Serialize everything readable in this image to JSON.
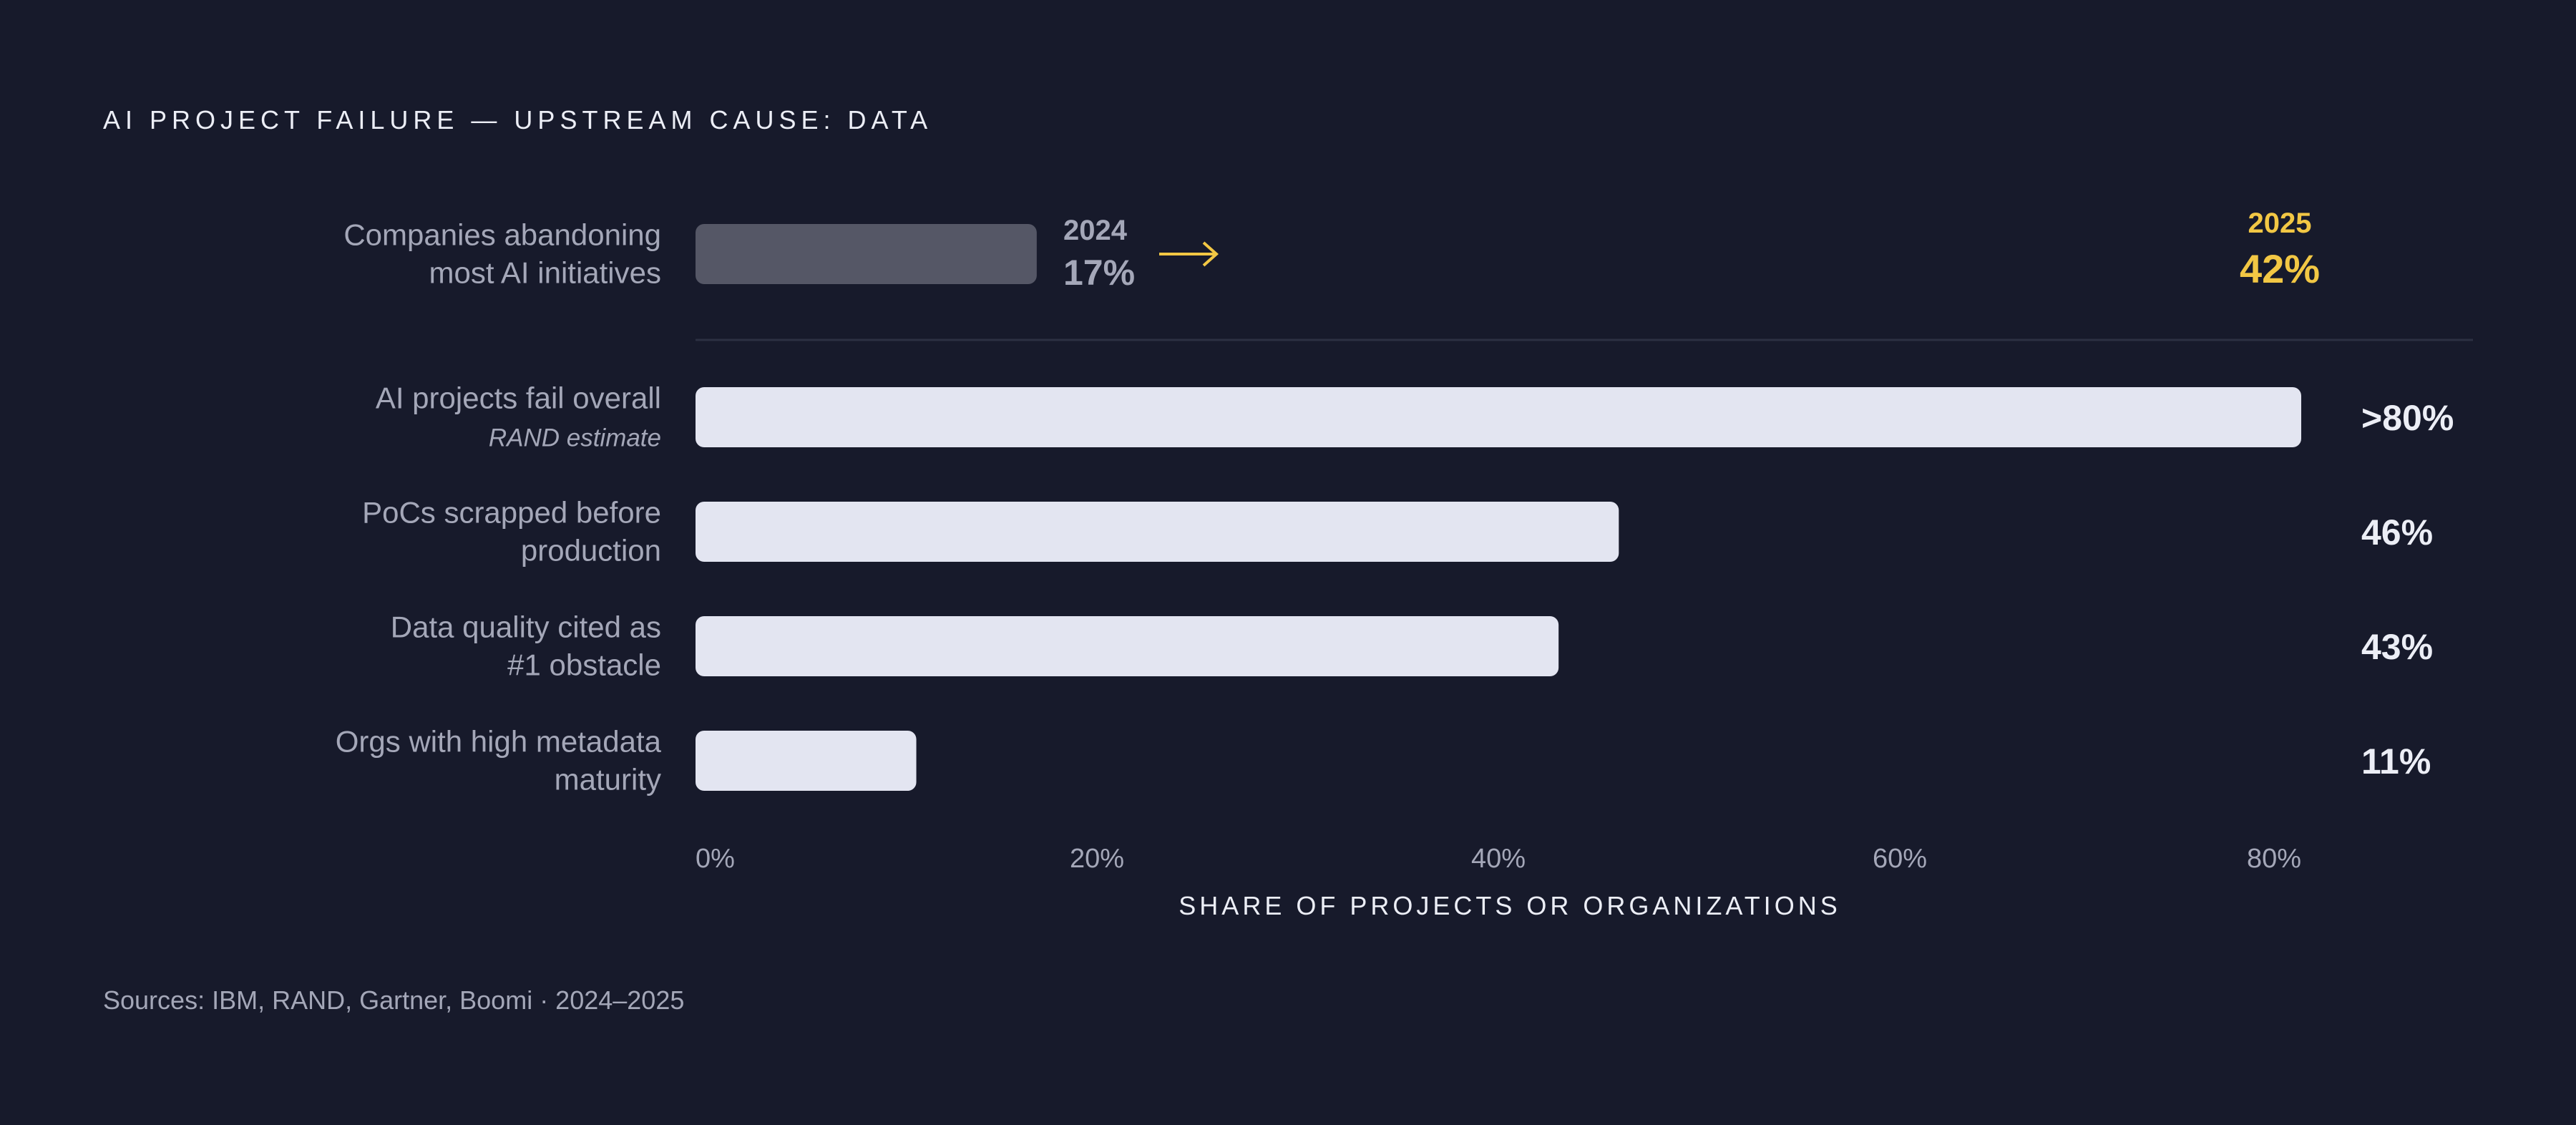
{
  "chart_data": {
    "type": "bar",
    "orientation": "horizontal",
    "title": "AI PROJECT FAILURE — UPSTREAM CAUSE: DATA",
    "xlabel": "SHARE OF PROJECTS OR ORGANIZATIONS",
    "xlim": [
      0,
      80
    ],
    "x_ticks": [
      "0%",
      "20%",
      "40%",
      "60%",
      "80%"
    ],
    "comparison": {
      "label_lines": [
        "Companies abandoning",
        "most AI initiatives"
      ],
      "from": {
        "year": "2024",
        "value": 17,
        "label": "17%"
      },
      "to": {
        "year": "2025",
        "value": 42,
        "label": "42%"
      }
    },
    "bars": [
      {
        "label_lines": [
          "AI projects fail overall"
        ],
        "sublabel": "RAND estimate",
        "value": 80,
        "value_label": ">80%"
      },
      {
        "label_lines": [
          "PoCs scrapped before",
          "production"
        ],
        "sublabel": "",
        "value": 46,
        "value_label": "46%"
      },
      {
        "label_lines": [
          "Data quality cited as",
          "#1 obstacle"
        ],
        "sublabel": "",
        "value": 43,
        "value_label": "43%"
      },
      {
        "label_lines": [
          "Orgs with high metadata",
          "maturity"
        ],
        "sublabel": "",
        "value": 11,
        "value_label": "11%"
      }
    ],
    "source": "Sources: IBM, RAND, Gartner, Boomi · 2024–2025",
    "colors": {
      "background": "#171a2b",
      "bar": "#e3e5f1",
      "comparison_bar": "#555766",
      "accent": "#f2c744",
      "muted_text": "#a4a7b8",
      "divider": "#2c3042"
    }
  }
}
